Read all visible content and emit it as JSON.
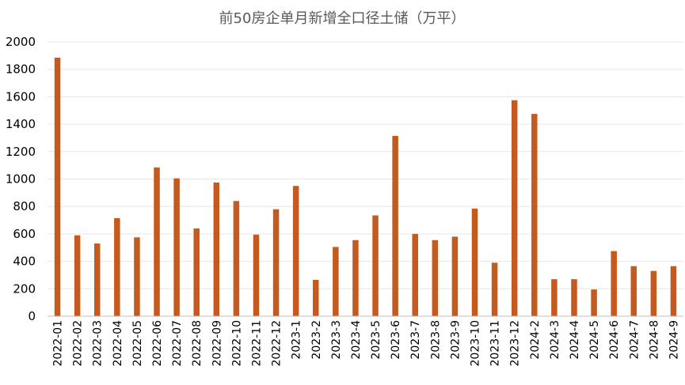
{
  "chart_data": {
    "type": "bar",
    "title": "前50房企单月新增全口径土储（万平）",
    "xlabel": "",
    "ylabel": "",
    "ylim": [
      0,
      2000
    ],
    "yticks": [
      0,
      200,
      400,
      600,
      800,
      1000,
      1200,
      1400,
      1600,
      1800,
      2000
    ],
    "grid": true,
    "legend": "none",
    "bar_color": "#C55A1E",
    "categories": [
      "2022-01",
      "2022-02",
      "2022-03",
      "2022-04",
      "2022-05",
      "2022-06",
      "2022-07",
      "2022-08",
      "2022-09",
      "2022-10",
      "2022-11",
      "2022-12",
      "2023-1",
      "2023-2",
      "2023-3",
      "2023-4",
      "2023-5",
      "2023-6",
      "2023-7",
      "2023-8",
      "2023-9",
      "2023-10",
      "2023-11",
      "2023-12",
      "2024-2",
      "2024-3",
      "2024-4",
      "2024-5",
      "2024-6",
      "2024-7",
      "2024-8",
      "2024-9"
    ],
    "values": [
      1885,
      590,
      530,
      715,
      575,
      1085,
      1005,
      640,
      975,
      840,
      595,
      780,
      950,
      265,
      505,
      555,
      735,
      1315,
      600,
      555,
      580,
      785,
      390,
      1575,
      1475,
      270,
      270,
      195,
      475,
      365,
      330,
      365
    ]
  }
}
